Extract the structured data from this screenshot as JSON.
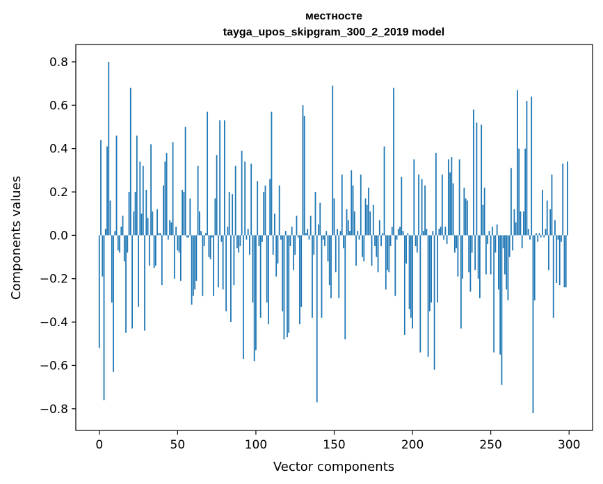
{
  "chart_data": {
    "type": "bar",
    "title_line1": "местносте",
    "title_line2": "tayga_upos_skipgram_300_2_2019 model",
    "xlabel": "Vector components",
    "ylabel": "Components values",
    "xlim": [
      -15,
      315
    ],
    "ylim": [
      -0.9,
      0.88
    ],
    "xticks": [
      0,
      50,
      100,
      150,
      200,
      250,
      300
    ],
    "xtick_labels": [
      "0",
      "50",
      "100",
      "150",
      "200",
      "250",
      "300"
    ],
    "yticks": [
      -0.8,
      -0.6,
      -0.4,
      -0.2,
      0.0,
      0.2,
      0.4,
      0.6,
      0.8
    ],
    "ytick_labels": [
      "−0.8",
      "−0.6",
      "−0.4",
      "−0.2",
      "0.0",
      "0.2",
      "0.4",
      "0.6",
      "0.8"
    ],
    "bar_color": "#1f77b4",
    "grid": false,
    "values": [
      -0.52,
      0.44,
      -0.19,
      -0.76,
      0.03,
      0.41,
      0.8,
      0.16,
      -0.31,
      -0.63,
      0.02,
      0.46,
      -0.07,
      -0.08,
      0.04,
      0.09,
      -0.12,
      -0.45,
      -0.08,
      0.2,
      0.68,
      -0.43,
      0.11,
      0.2,
      0.46,
      -0.33,
      0.34,
      0.1,
      0.32,
      -0.44,
      0.21,
      0.08,
      -0.14,
      0.42,
      0.11,
      -0.15,
      -0.14,
      0.12,
      0.01,
      0.01,
      -0.23,
      0.23,
      0.34,
      0.38,
      -0.02,
      0.07,
      0.06,
      0.43,
      -0.2,
      0.04,
      -0.07,
      -0.08,
      -0.21,
      0.21,
      0.2,
      0.5,
      -0.01,
      -0.01,
      0.17,
      -0.32,
      -0.28,
      -0.25,
      -0.21,
      0.32,
      0.11,
      0.02,
      -0.28,
      -0.05,
      0.01,
      0.57,
      -0.1,
      -0.11,
      -0.01,
      -0.28,
      0.17,
      0.37,
      -0.24,
      0.53,
      -0.03,
      -0.25,
      0.53,
      -0.35,
      0.04,
      0.2,
      -0.4,
      0.19,
      -0.23,
      0.32,
      -0.06,
      -0.08,
      -0.05,
      0.39,
      -0.57,
      0.34,
      -0.02,
      0.03,
      -0.09,
      0.33,
      -0.31,
      -0.58,
      -0.53,
      0.25,
      -0.05,
      -0.38,
      -0.03,
      0.2,
      0.23,
      -0.31,
      -0.41,
      0.26,
      0.57,
      -0.09,
      0.1,
      -0.19,
      -0.13,
      0.23,
      -0.02,
      -0.35,
      -0.48,
      0.02,
      -0.47,
      -0.45,
      -0.05,
      0.04,
      -0.16,
      -0.09,
      0.09,
      -0.01,
      -0.41,
      -0.33,
      0.6,
      0.55,
      0.01,
      0.03,
      -0.02,
      0.09,
      -0.38,
      -0.09,
      0.2,
      -0.77,
      0.05,
      0.15,
      -0.38,
      -0.02,
      -0.05,
      0.02,
      -0.12,
      -0.23,
      -0.29,
      0.69,
      0.17,
      -0.17,
      0.03,
      -0.29,
      0.02,
      0.28,
      -0.06,
      -0.48,
      0.12,
      0.07,
      0.02,
      0.3,
      0.23,
      0.11,
      -0.14,
      0.02,
      -0.02,
      0.28,
      -0.1,
      -0.12,
      0.17,
      0.14,
      0.22,
      0.11,
      -0.14,
      0.14,
      -0.05,
      -0.1,
      -0.17,
      0.07,
      -0.05,
      0.01,
      0.41,
      -0.25,
      -0.16,
      -0.17,
      -0.05,
      0.04,
      0.68,
      -0.28,
      -0.02,
      0.03,
      0.04,
      0.27,
      0.02,
      -0.46,
      -0.13,
      0.01,
      -0.34,
      -0.38,
      -0.43,
      0.35,
      -0.05,
      -0.08,
      0.28,
      -0.54,
      0.26,
      0.02,
      0.23,
      0.03,
      -0.56,
      -0.35,
      -0.31,
      0.02,
      -0.62,
      0.38,
      -0.31,
      0.03,
      0.04,
      0.28,
      -0.02,
      0.04,
      -0.04,
      0.35,
      0.29,
      0.36,
      0.24,
      -0.08,
      -0.06,
      -0.19,
      0.35,
      -0.43,
      -0.2,
      0.22,
      0.17,
      0.16,
      -0.17,
      -0.26,
      -0.08,
      0.58,
      -0.16,
      0.52,
      -0.2,
      -0.29,
      0.51,
      0.14,
      0.22,
      -0.18,
      -0.04,
      0.02,
      -0.18,
      0.04,
      -0.54,
      -0.08,
      0.05,
      -0.25,
      -0.55,
      -0.69,
      -0.06,
      -0.18,
      -0.25,
      -0.3,
      -0.1,
      0.31,
      -0.07,
      0.12,
      0.06,
      0.67,
      0.4,
      0.11,
      -0.06,
      0.11,
      0.4,
      0.62,
      0.03,
      -0.02,
      0.64,
      -0.82,
      -0.3,
      0.01,
      -0.03,
      0.01,
      -0.01,
      0.21,
      -0.01,
      0.03,
      0.16,
      -0.16,
      0.12,
      0.28,
      -0.38,
      0.07,
      -0.22,
      -0.02,
      -0.23,
      -0.03,
      0.33,
      -0.24,
      -0.24,
      0.34
    ]
  }
}
